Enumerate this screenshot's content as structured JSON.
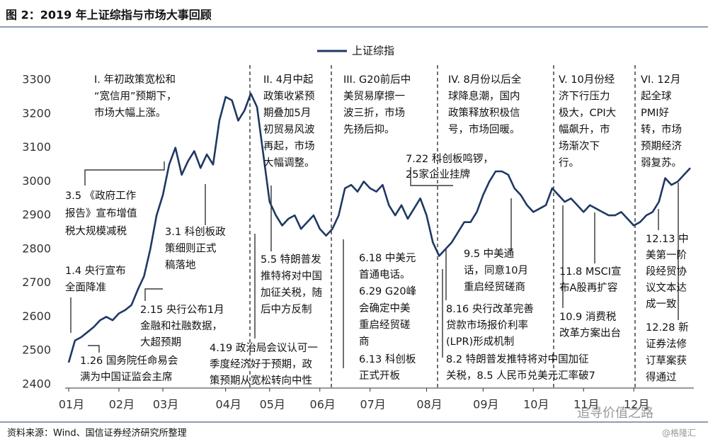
{
  "chart_data": {
    "type": "line",
    "title": "图 2：2019 年上证综指与市场大事回顾",
    "source": "资料来源：Wind、国信证券经济研究所整理",
    "watermark": [
      "追寻价值之路",
      "@格隆汇"
    ],
    "categories": [
      "01月",
      null,
      null,
      null,
      null,
      null,
      null,
      null,
      "02月",
      null,
      null,
      null,
      null,
      null,
      null,
      "03月",
      null,
      null,
      null,
      null,
      null,
      null,
      null,
      null,
      null,
      "04月",
      null,
      null,
      null,
      null,
      null,
      null,
      "05月",
      null,
      null,
      null,
      null,
      null,
      null,
      null,
      "06月",
      null,
      null,
      null,
      null,
      null,
      null,
      null,
      "07月",
      null,
      null,
      null,
      null,
      null,
      null,
      null,
      null,
      "08月",
      null,
      null,
      null,
      null,
      null,
      null,
      null,
      null,
      "09月",
      null,
      null,
      null,
      null,
      null,
      null,
      null,
      "10月",
      null,
      null,
      null,
      null,
      null,
      null,
      null,
      "11月",
      null,
      null,
      null,
      null,
      null,
      null,
      null,
      "12月",
      null,
      null,
      null,
      null,
      null,
      null,
      null,
      null,
      null
    ],
    "series": [
      {
        "name": "上证综指",
        "color": "#1f3864",
        "values": [
          2465,
          2530,
          2540,
          2555,
          2570,
          2590,
          2600,
          2590,
          2610,
          2620,
          2635,
          2680,
          2720,
          2800,
          2900,
          2960,
          3050,
          3100,
          3020,
          3060,
          3090,
          3040,
          3080,
          3050,
          3180,
          3250,
          3240,
          3180,
          3210,
          3260,
          3220,
          3080,
          2940,
          2900,
          2870,
          2890,
          2900,
          2860,
          2880,
          2900,
          2860,
          2840,
          2860,
          2900,
          2980,
          2990,
          2970,
          3000,
          2980,
          2970,
          2990,
          2930,
          2900,
          2930,
          2890,
          2920,
          2950,
          2900,
          2820,
          2780,
          2800,
          2820,
          2850,
          2880,
          2880,
          2910,
          2960,
          3000,
          3030,
          3030,
          3020,
          2980,
          2960,
          2930,
          2910,
          2920,
          2930,
          2980,
          2960,
          2940,
          2950,
          2930,
          2910,
          2930,
          2920,
          2910,
          2900,
          2900,
          2910,
          2890,
          2870,
          2880,
          2900,
          2910,
          2940,
          3010,
          2990,
          3000,
          3020,
          3040
        ]
      }
    ],
    "ylim": [
      2400,
      3300
    ],
    "yticks": [
      2400,
      2500,
      2600,
      2700,
      2800,
      2900,
      3000,
      3100,
      3200,
      3300
    ],
    "annotations": [
      {
        "lines": [
          "I. 年初政策宽松和",
          "“宽信用”预期下，",
          "市场大幅上涨。"
        ]
      },
      {
        "lines": [
          "II. 4月中起",
          "政策收紧预",
          "期叠加5月",
          "初贸易风波",
          "再起，市场",
          "大幅调整。"
        ]
      },
      {
        "lines": [
          "III. G20前后中",
          "美贸易摩擦一",
          "波三折，市场",
          "先扬后抑。"
        ]
      },
      {
        "lines": [
          "IV. 8月份以后全",
          "球降息潮，国内",
          "政策释放积极信",
          "号，市场回暖。"
        ]
      },
      {
        "lines": [
          "V. 10月份经",
          "济下行压力",
          "极大，CPI大",
          "幅飙升，市",
          "场渐次下",
          "行。"
        ]
      },
      {
        "lines": [
          "VI. 12月",
          "起全球",
          "PMI好",
          "转，市场",
          "预期经济",
          "弱复苏。"
        ]
      },
      {
        "lines": [
          "3.5 《政府工作",
          "报告》宣布增值",
          "税大规模减税"
        ]
      },
      {
        "lines": [
          "3.1 科创板政",
          "策细则正式",
          "稿落地"
        ]
      },
      {
        "lines": [
          "1.4 央行宣布",
          "全面降准"
        ]
      },
      {
        "lines": [
          "2.15 央行公布1月",
          "金融和社融数据，",
          "大超预期"
        ]
      },
      {
        "lines": [
          "1.26 国务院任命易会",
          "满为中国证监会主席"
        ]
      },
      {
        "lines": [
          "5.5 特朗普发",
          "推特将对中国",
          "加征关税，随",
          "后中方反制"
        ]
      },
      {
        "lines": [
          "4.19 政治局会议认可一",
          "季度经济好于预期，政",
          "策预期从宽松转向中性"
        ]
      },
      {
        "lines": [
          "7.22 科创板鸣锣，",
          "25家企业挂牌"
        ]
      },
      {
        "lines": [
          "6.18 中美元",
          "首通电话。",
          "6.29 G20峰",
          "会确定中美",
          "重启经贸磋",
          "商"
        ]
      },
      {
        "lines": [
          "6.13 科创板",
          "正式开板"
        ]
      },
      {
        "lines": [
          "9.5 中美通",
          "话，同意10月",
          "重启经贸磋商"
        ]
      },
      {
        "lines": [
          "8.16 央行改革完善",
          "贷款市场报价利率",
          "(LPR)形成机制"
        ]
      },
      {
        "lines": [
          "8.2 特朗普发推特将对中国加征",
          "关税，8.5 人民币兑美元汇率破7"
        ]
      },
      {
        "lines": [
          "11.8 MSCI宣",
          "布A股再扩容"
        ]
      },
      {
        "lines": [
          "10.9 消费税",
          "改革方案出台"
        ]
      },
      {
        "lines": [
          "12.13 中",
          "美第一阶",
          "段经贸协",
          "议文本达",
          "成一致"
        ]
      },
      {
        "lines": [
          "12.28 新",
          "证券法修",
          "订草案获",
          "得通过"
        ]
      }
    ]
  }
}
